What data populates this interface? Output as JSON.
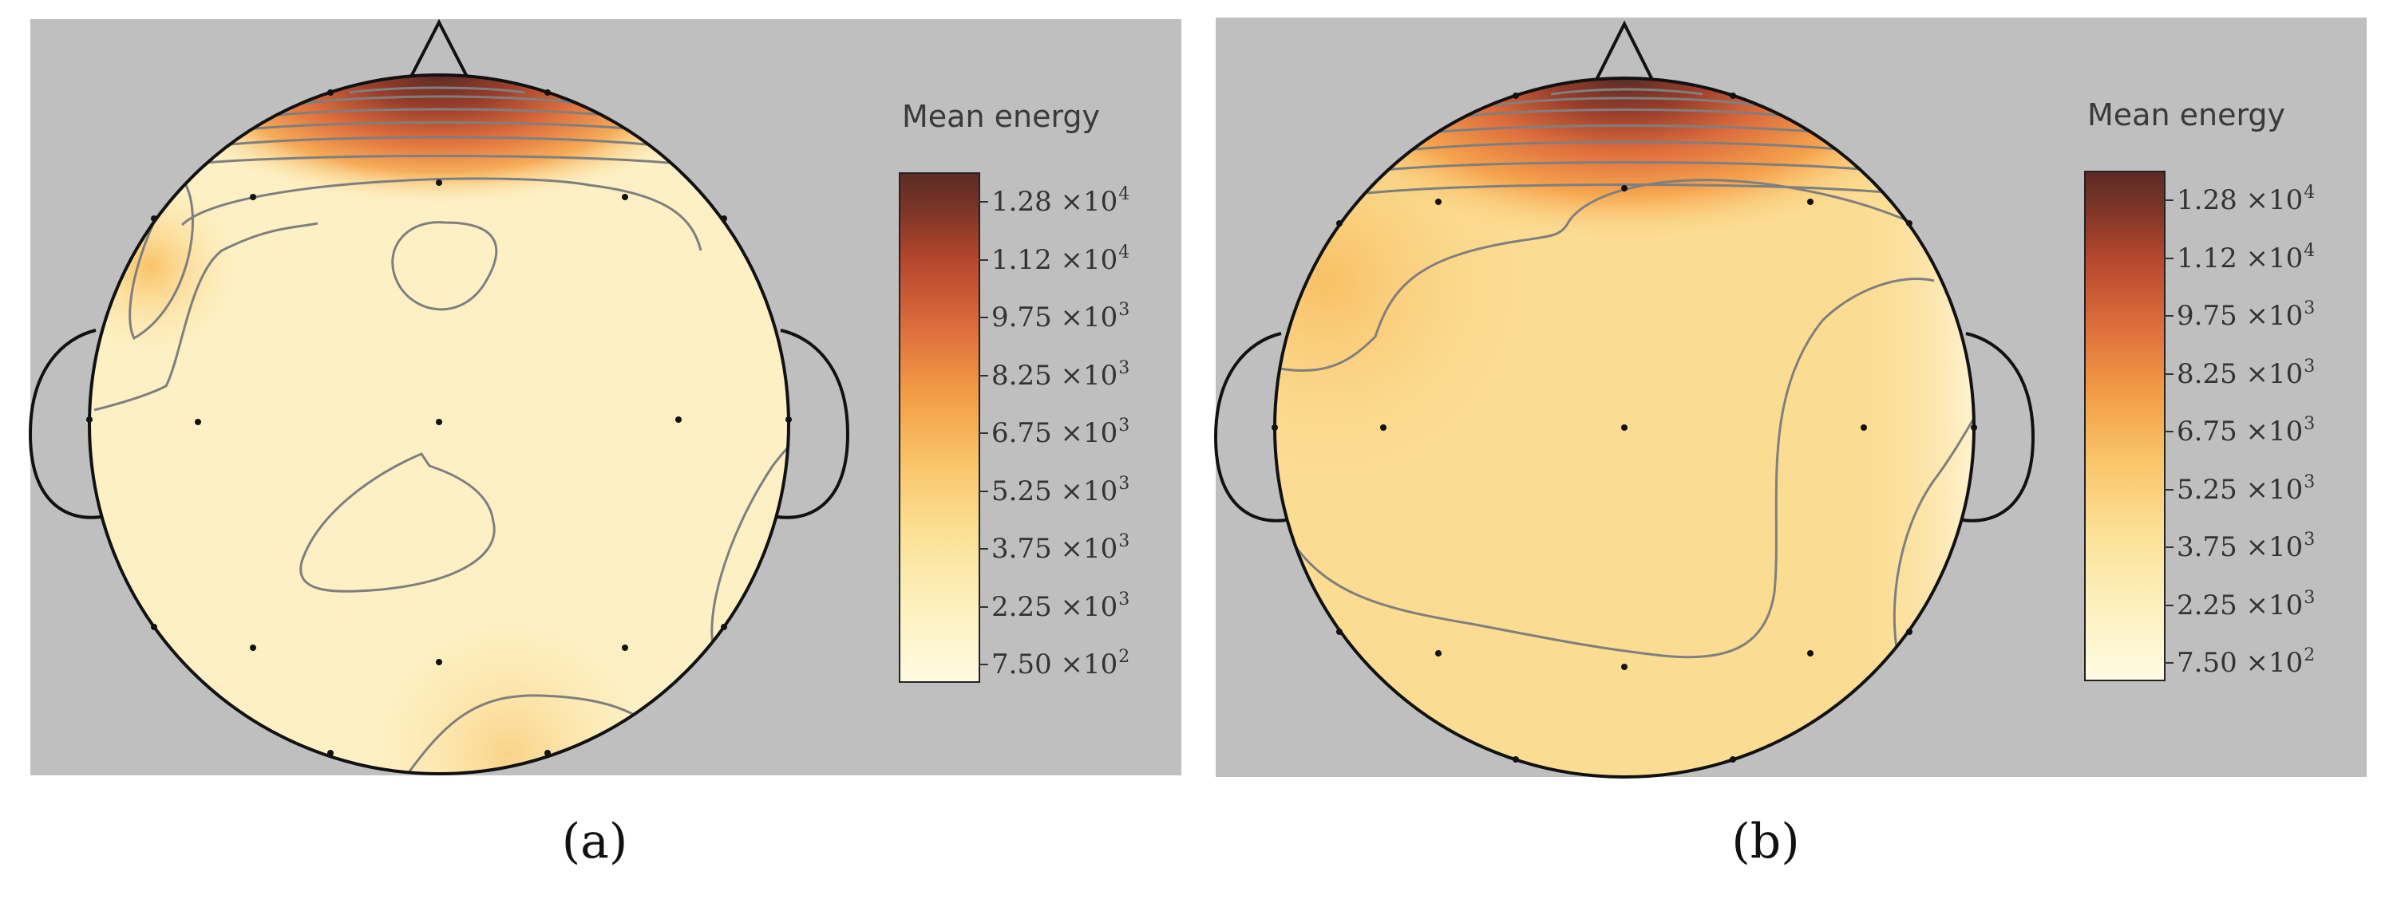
{
  "chart_data": [
    {
      "type": "heatmap",
      "panel_label": "a",
      "colorbar": {
        "title": "Mean energy",
        "tick_labels": [
          {
            "mant": "1.28",
            "exp": "4"
          },
          {
            "mant": "1.12",
            "exp": "4"
          },
          {
            "mant": "9.75",
            "exp": "3"
          },
          {
            "mant": "8.25",
            "exp": "3"
          },
          {
            "mant": "6.75",
            "exp": "3"
          },
          {
            "mant": "5.25",
            "exp": "3"
          },
          {
            "mant": "3.75",
            "exp": "3"
          },
          {
            "mant": "2.25",
            "exp": "3"
          },
          {
            "mant": "7.50",
            "exp": "2"
          }
        ],
        "range": [
          750,
          13500
        ],
        "colors": [
          "#fffbe2",
          "#fdf0bd",
          "#fbdf93",
          "#f9c266",
          "#f29b45",
          "#dd6c3c",
          "#b5472e",
          "#7c3528",
          "#5c2c25"
        ]
      }
    },
    {
      "type": "heatmap",
      "panel_label": "b",
      "colorbar": {
        "title": "Mean energy",
        "tick_labels": [
          {
            "mant": "1.28",
            "exp": "4"
          },
          {
            "mant": "1.12",
            "exp": "4"
          },
          {
            "mant": "9.75",
            "exp": "3"
          },
          {
            "mant": "8.25",
            "exp": "3"
          },
          {
            "mant": "6.75",
            "exp": "3"
          },
          {
            "mant": "5.25",
            "exp": "3"
          },
          {
            "mant": "3.75",
            "exp": "3"
          },
          {
            "mant": "2.25",
            "exp": "3"
          },
          {
            "mant": "7.50",
            "exp": "2"
          }
        ],
        "range": [
          750,
          13500
        ],
        "colors": [
          "#fffbe2",
          "#fdf0bd",
          "#fbdf93",
          "#f9c266",
          "#f29b45",
          "#dd6c3c",
          "#b5472e",
          "#7c3528",
          "#5c2c25"
        ]
      }
    }
  ],
  "panel_labels": [
    "(a)",
    "(b)"
  ]
}
